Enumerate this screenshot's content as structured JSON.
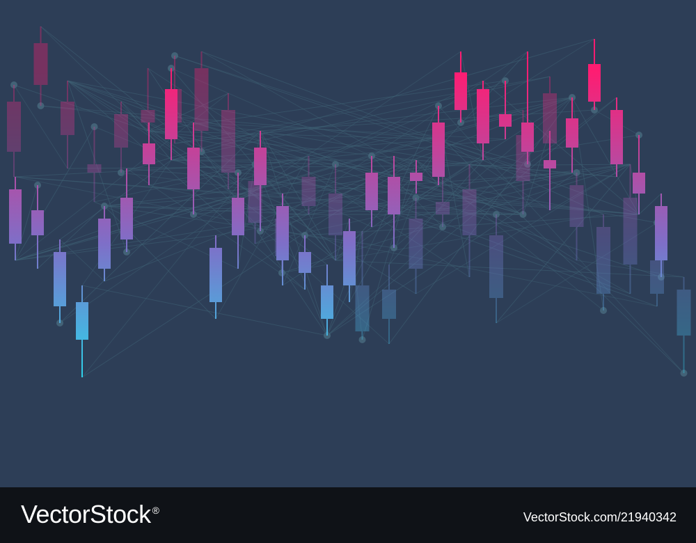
{
  "colors": {
    "background": "#2d3e57",
    "footer_bg": "#0f1217",
    "footer_text": "#ffffff",
    "gradient_low": "#15f2f7",
    "gradient_mid": "#7e6fc8",
    "gradient_high": "#ff1c71",
    "network_line": "#3f6275",
    "network_node": "#486b80"
  },
  "footer": {
    "logo_text": "VectorStock",
    "logo_mark": "®",
    "image_id": "VectorStock.com/21940342"
  },
  "chart_data": [
    {
      "type": "candlestick",
      "layer": "background",
      "grid": false,
      "ylim": [
        0,
        100
      ],
      "candles": [
        {
          "open": 67,
          "close": 79,
          "high": 83,
          "low": 61
        },
        {
          "open": 83,
          "close": 93,
          "high": 97,
          "low": 78
        },
        {
          "open": 71,
          "close": 79,
          "high": 84,
          "low": 63
        },
        {
          "open": 62,
          "close": 64,
          "high": 73,
          "low": 55
        },
        {
          "open": 68,
          "close": 76,
          "high": 79,
          "low": 62
        },
        {
          "open": 74,
          "close": 77,
          "high": 87,
          "low": 72
        },
        {
          "open": 74,
          "close": 82,
          "high": 90,
          "low": 69
        },
        {
          "open": 72,
          "close": 87,
          "high": 91,
          "low": 67
        },
        {
          "open": 62,
          "close": 77,
          "high": 81,
          "low": 58
        },
        {
          "open": 50,
          "close": 60,
          "high": 64,
          "low": 45
        },
        {
          "open": 42,
          "close": 51,
          "high": 52,
          "low": 38
        },
        {
          "open": 54,
          "close": 61,
          "high": 66,
          "low": 52
        },
        {
          "open": 47,
          "close": 57,
          "high": 64,
          "low": 41
        },
        {
          "open": 24,
          "close": 35,
          "high": 48,
          "low": 22
        },
        {
          "open": 27,
          "close": 34,
          "high": 40,
          "low": 21
        },
        {
          "open": 39,
          "close": 51,
          "high": 56,
          "low": 33
        },
        {
          "open": 52,
          "close": 55,
          "high": 70,
          "low": 49
        },
        {
          "open": 47,
          "close": 58,
          "high": 64,
          "low": 37
        },
        {
          "open": 32,
          "close": 47,
          "high": 52,
          "low": 26
        },
        {
          "open": 60,
          "close": 71,
          "high": 77,
          "low": 52
        },
        {
          "open": 69,
          "close": 81,
          "high": 85,
          "low": 61
        },
        {
          "open": 49,
          "close": 59,
          "high": 62,
          "low": 41
        },
        {
          "open": 33,
          "close": 49,
          "high": 52,
          "low": 29
        },
        {
          "open": 40,
          "close": 56,
          "high": 64,
          "low": 33
        },
        {
          "open": 33,
          "close": 41,
          "high": 50,
          "low": 30
        },
        {
          "open": 23,
          "close": 34,
          "high": 37,
          "low": 14
        }
      ]
    },
    {
      "type": "candlestick",
      "layer": "foreground",
      "grid": false,
      "ylim": [
        0,
        100
      ],
      "candles": [
        {
          "open": 45,
          "close": 58,
          "high": 61,
          "low": 41
        },
        {
          "open": 47,
          "close": 53,
          "high": 59,
          "low": 39
        },
        {
          "open": 30,
          "close": 43,
          "high": 46,
          "low": 26
        },
        {
          "open": 22,
          "close": 31,
          "high": 35,
          "low": 13
        },
        {
          "open": 39,
          "close": 51,
          "high": 54,
          "low": 36
        },
        {
          "open": 46,
          "close": 56,
          "high": 63,
          "low": 43
        },
        {
          "open": 64,
          "close": 69,
          "high": 74,
          "low": 59
        },
        {
          "open": 70,
          "close": 82,
          "high": 87,
          "low": 65
        },
        {
          "open": 58,
          "close": 68,
          "high": 74,
          "low": 52
        },
        {
          "open": 31,
          "close": 44,
          "high": 47,
          "low": 27
        },
        {
          "open": 47,
          "close": 56,
          "high": 62,
          "low": 39
        },
        {
          "open": 59,
          "close": 68,
          "high": 72,
          "low": 48
        },
        {
          "open": 41,
          "close": 54,
          "high": 57,
          "low": 35
        },
        {
          "open": 38,
          "close": 43,
          "high": 47,
          "low": 34
        },
        {
          "open": 27,
          "close": 35,
          "high": 40,
          "low": 23
        },
        {
          "open": 35,
          "close": 48,
          "high": 51,
          "low": 31
        },
        {
          "open": 53,
          "close": 62,
          "high": 66,
          "low": 49
        },
        {
          "open": 52,
          "close": 61,
          "high": 66,
          "low": 44
        },
        {
          "open": 60,
          "close": 62,
          "high": 65,
          "low": 57
        },
        {
          "open": 61,
          "close": 74,
          "high": 78,
          "low": 59
        },
        {
          "open": 77,
          "close": 86,
          "high": 91,
          "low": 74
        },
        {
          "open": 69,
          "close": 82,
          "high": 84,
          "low": 65
        },
        {
          "open": 73,
          "close": 76,
          "high": 84,
          "low": 70
        },
        {
          "open": 67,
          "close": 74,
          "high": 91,
          "low": 64
        },
        {
          "open": 63,
          "close": 65,
          "high": 72,
          "low": 53
        },
        {
          "open": 68,
          "close": 75,
          "high": 80,
          "low": 62
        },
        {
          "open": 79,
          "close": 88,
          "high": 94,
          "low": 77
        },
        {
          "open": 64,
          "close": 77,
          "high": 80,
          "low": 61
        },
        {
          "open": 57,
          "close": 62,
          "high": 71,
          "low": 52
        },
        {
          "open": 41,
          "close": 54,
          "high": 57,
          "low": 37
        }
      ]
    }
  ]
}
